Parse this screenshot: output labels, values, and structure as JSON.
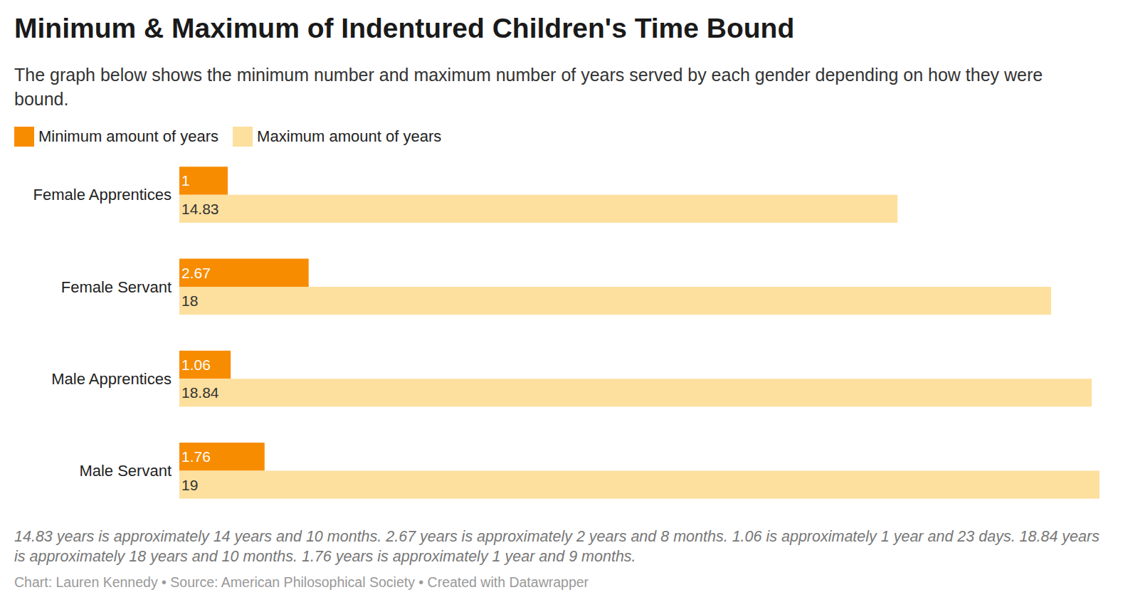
{
  "chart_data": {
    "type": "bar",
    "title": "Minimum & Maximum of Indentured Children's Time Bound",
    "subtitle": "The graph below shows the minimum number and maximum number of years served by each gender depending on how they were bound.",
    "orientation": "horizontal",
    "categories": [
      "Female Apprentices",
      "Female Servant",
      "Male Apprentices",
      "Male Servant"
    ],
    "series": [
      {
        "name": "Minimum amount of years",
        "color": "#f78c00",
        "values": [
          1,
          2.67,
          1.06,
          1.76
        ]
      },
      {
        "name": "Maximum amount of years",
        "color": "#fddf9e",
        "values": [
          14.83,
          18,
          18.84,
          19
        ]
      }
    ],
    "xlim": [
      0,
      19
    ],
    "xticks": [],
    "tick_labels": "y",
    "data_labels": true,
    "grid": false,
    "legend": "top-left",
    "notes": "14.83 years is approximately 14 years and 10 months. 2.67 years is approximately 2 years and 8 months. 1.06 is approximately 1 year and 23 days. 18.84 years is approximately 18 years and 10 months. 1.76 years is approximately 1 year and 9 months.",
    "source": "Chart: Lauren Kennedy • Source: American Philosophical Society • Created with Datawrapper"
  }
}
